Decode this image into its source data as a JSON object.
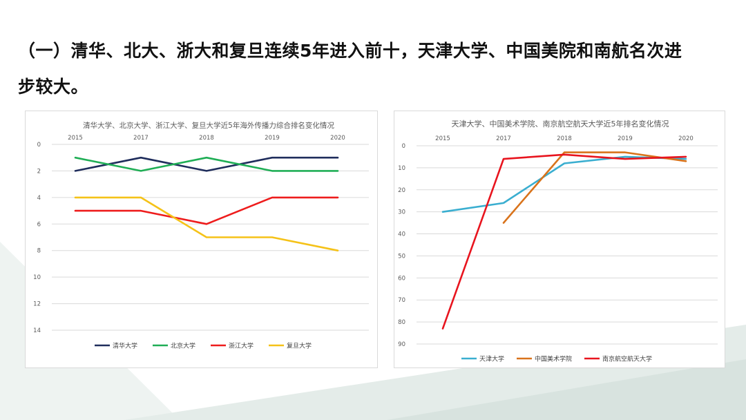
{
  "heading": {
    "line1": "（一）清华、北大、浙大和复旦连续5年进入前十，天津大学、中国美院和南航名次进",
    "line2": "步较大。"
  },
  "chart_data": [
    {
      "type": "line",
      "title": "清华大学、北京大学、浙江大学、复旦大学近5年海外传播力综合排名变化情况",
      "categories": [
        "2015",
        "2017",
        "2018",
        "2019",
        "2020"
      ],
      "y_ticks": [
        "0",
        "2",
        "4",
        "6",
        "8",
        "10",
        "12",
        "14"
      ],
      "ylim": [
        0,
        14
      ],
      "y_inverted": true,
      "x_axis_position": "top",
      "legend_position": "bottom",
      "series": [
        {
          "name": "清华大学",
          "color": "#1f2d5c",
          "values": [
            2,
            1,
            2,
            1,
            1
          ]
        },
        {
          "name": "北京大学",
          "color": "#1fae55",
          "values": [
            1,
            2,
            1,
            2,
            2
          ]
        },
        {
          "name": "浙江大学",
          "color": "#ee1c1c",
          "values": [
            5,
            5,
            6,
            4,
            4
          ]
        },
        {
          "name": "复旦大学",
          "color": "#f5c218",
          "values": [
            4,
            4,
            7,
            7,
            8
          ]
        }
      ]
    },
    {
      "type": "line",
      "title": "天津大学、中国美术学院、南京航空航天大学近5年排名变化情况",
      "categories": [
        "2015",
        "2017",
        "2018",
        "2019",
        "2020"
      ],
      "y_ticks": [
        "0",
        "10",
        "20",
        "30",
        "40",
        "50",
        "60",
        "70",
        "80",
        "90"
      ],
      "ylim": [
        0,
        90
      ],
      "y_inverted": true,
      "x_axis_position": "top",
      "legend_position": "bottom",
      "series": [
        {
          "name": "天津大学",
          "color": "#3aaed0",
          "values": [
            30,
            26,
            8,
            5,
            6
          ]
        },
        {
          "name": "中国美术学院",
          "color": "#d9731b",
          "values": [
            null,
            35,
            3,
            3,
            7
          ]
        },
        {
          "name": "南京航空航天大学",
          "color": "#e8141e",
          "values": [
            83,
            6,
            4,
            6,
            5
          ]
        }
      ]
    }
  ]
}
